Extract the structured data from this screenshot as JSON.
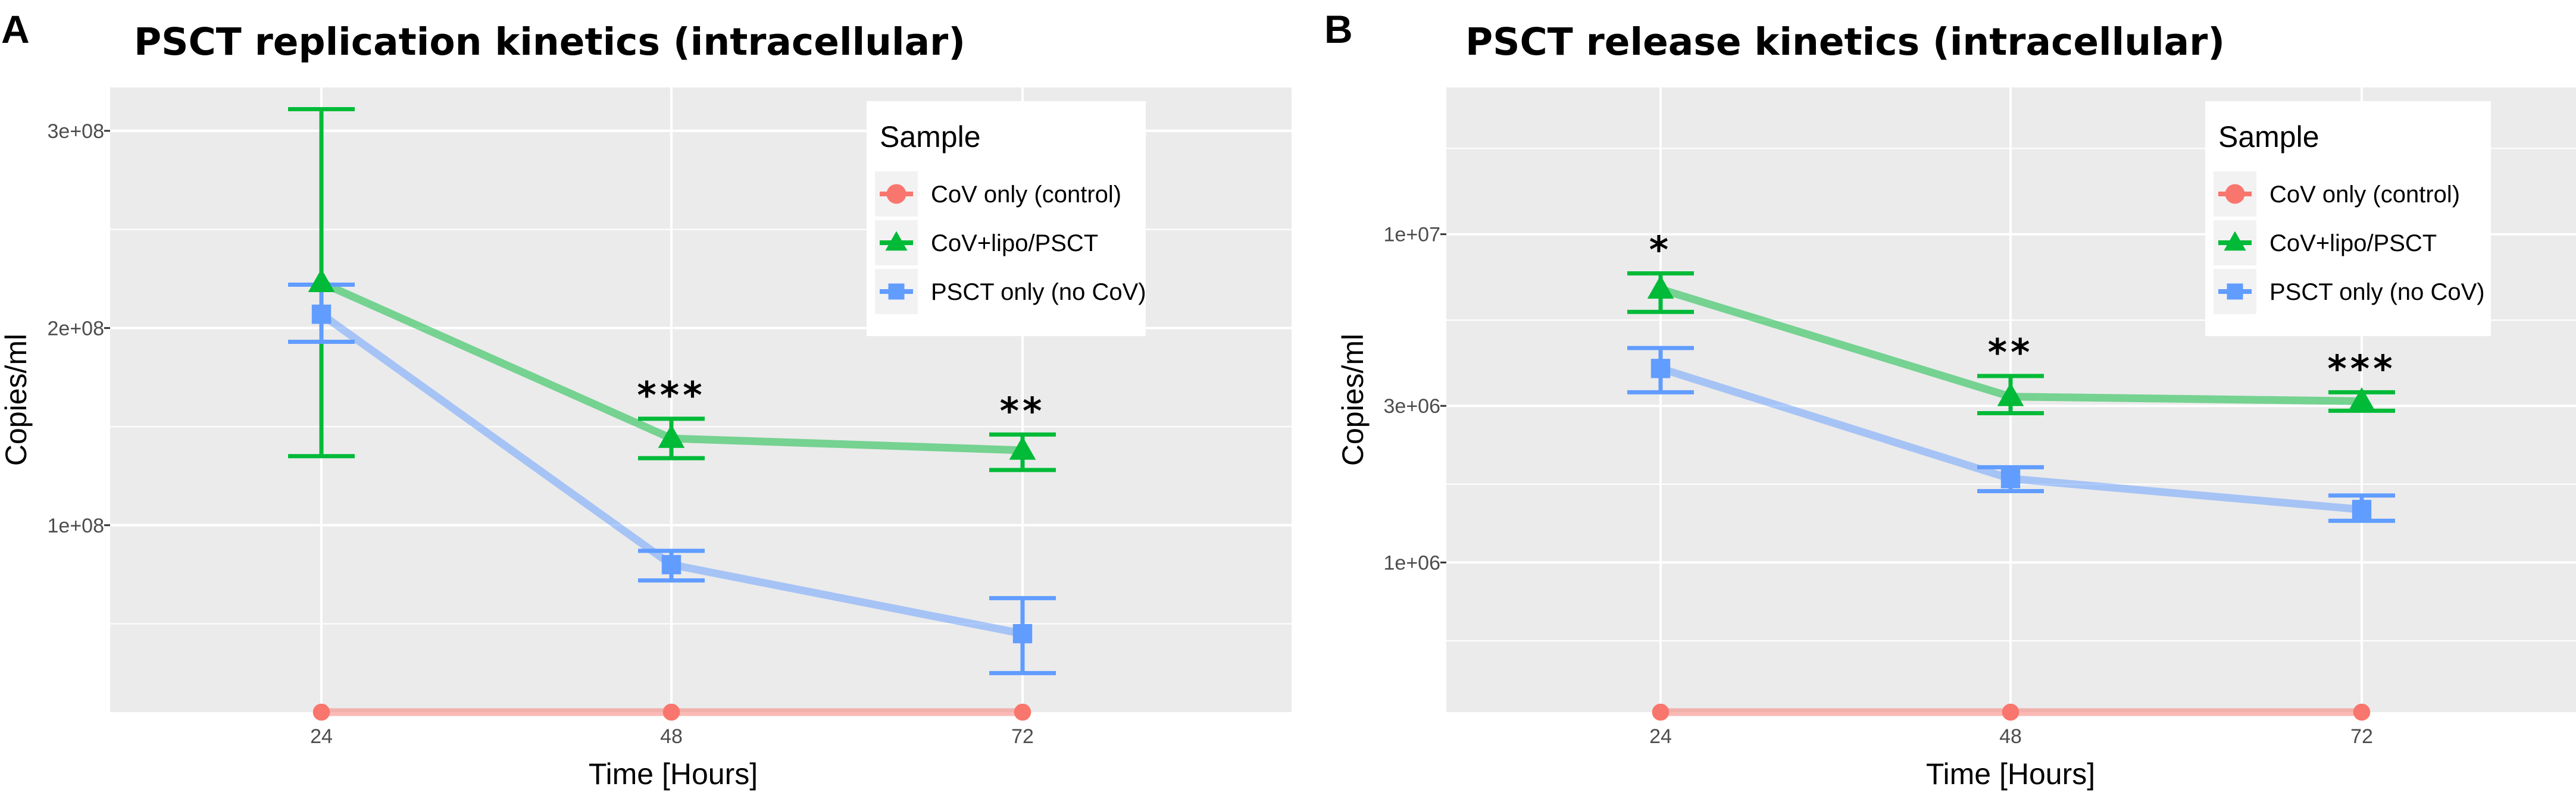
{
  "chart_data": [
    {
      "panel": "A",
      "type": "line",
      "title": "PSCT replication kinetics (intracellular)",
      "xlabel": "Time [Hours]",
      "ylabel": "Copies/ml",
      "categories": [
        "24",
        "48",
        "72"
      ],
      "y_scale": "linear",
      "ylim": [
        5200000,
        322000000
      ],
      "y_ticks": [
        100000000,
        200000000,
        300000000
      ],
      "y_tick_labels": [
        "1e+08",
        "2e+08",
        "3e+08"
      ],
      "legend": {
        "title": "Sample",
        "position": "top-right"
      },
      "series": [
        {
          "name": "CoV only (control)",
          "color": "#F8766D",
          "marker": "circle",
          "values": [
            5200000,
            5200000,
            5200000
          ],
          "err_low": [
            null,
            null,
            null
          ],
          "err_high": [
            null,
            null,
            null
          ]
        },
        {
          "name": "CoV+lipo/PSCT",
          "color": "#00BA38",
          "marker": "triangle",
          "values": [
            223000000,
            144000000,
            138000000
          ],
          "err_low": [
            135000000,
            134000000,
            128000000
          ],
          "err_high": [
            311000000,
            154000000,
            146000000
          ]
        },
        {
          "name": "PSCT only (no CoV)",
          "color": "#619CFF",
          "marker": "square",
          "values": [
            207000000,
            80000000,
            45000000
          ],
          "err_low": [
            193000000,
            72000000,
            25000000
          ],
          "err_high": [
            222000000,
            87000000,
            63000000
          ]
        }
      ],
      "annotations": [
        {
          "x": "48",
          "text": "***"
        },
        {
          "x": "72",
          "text": "**"
        }
      ]
    },
    {
      "panel": "B",
      "type": "line",
      "title": "PSCT release kinetics (intracellular)",
      "xlabel": "Time [Hours]",
      "ylabel": "Copies/ml",
      "categories": [
        "24",
        "48",
        "72"
      ],
      "y_scale": "log10",
      "ylim": [
        350000,
        28000000
      ],
      "y_ticks": [
        1000000,
        3000000,
        10000000
      ],
      "y_tick_labels": [
        "1e+06",
        "3e+06",
        "1e+07"
      ],
      "legend": {
        "title": "Sample",
        "position": "top-right"
      },
      "series": [
        {
          "name": "CoV only (control)",
          "color": "#F8766D",
          "marker": "circle",
          "values": [
            350000,
            350000,
            350000
          ],
          "err_low": [
            null,
            null,
            null
          ],
          "err_high": [
            null,
            null,
            null
          ]
        },
        {
          "name": "CoV+lipo/PSCT",
          "color": "#00BA38",
          "marker": "triangle",
          "values": [
            6800000,
            3200000,
            3100000
          ],
          "err_low": [
            5800000,
            2850000,
            2900000
          ],
          "err_high": [
            7600000,
            3700000,
            3300000
          ]
        },
        {
          "name": "PSCT only (no CoV)",
          "color": "#619CFF",
          "marker": "square",
          "values": [
            3900000,
            1800000,
            1450000
          ],
          "err_low": [
            3300000,
            1650000,
            1340000
          ],
          "err_high": [
            4500000,
            1950000,
            1600000
          ]
        }
      ],
      "annotations": [
        {
          "x": "24",
          "text": "*"
        },
        {
          "x": "48",
          "text": "**"
        },
        {
          "x": "72",
          "text": "***"
        }
      ]
    }
  ]
}
